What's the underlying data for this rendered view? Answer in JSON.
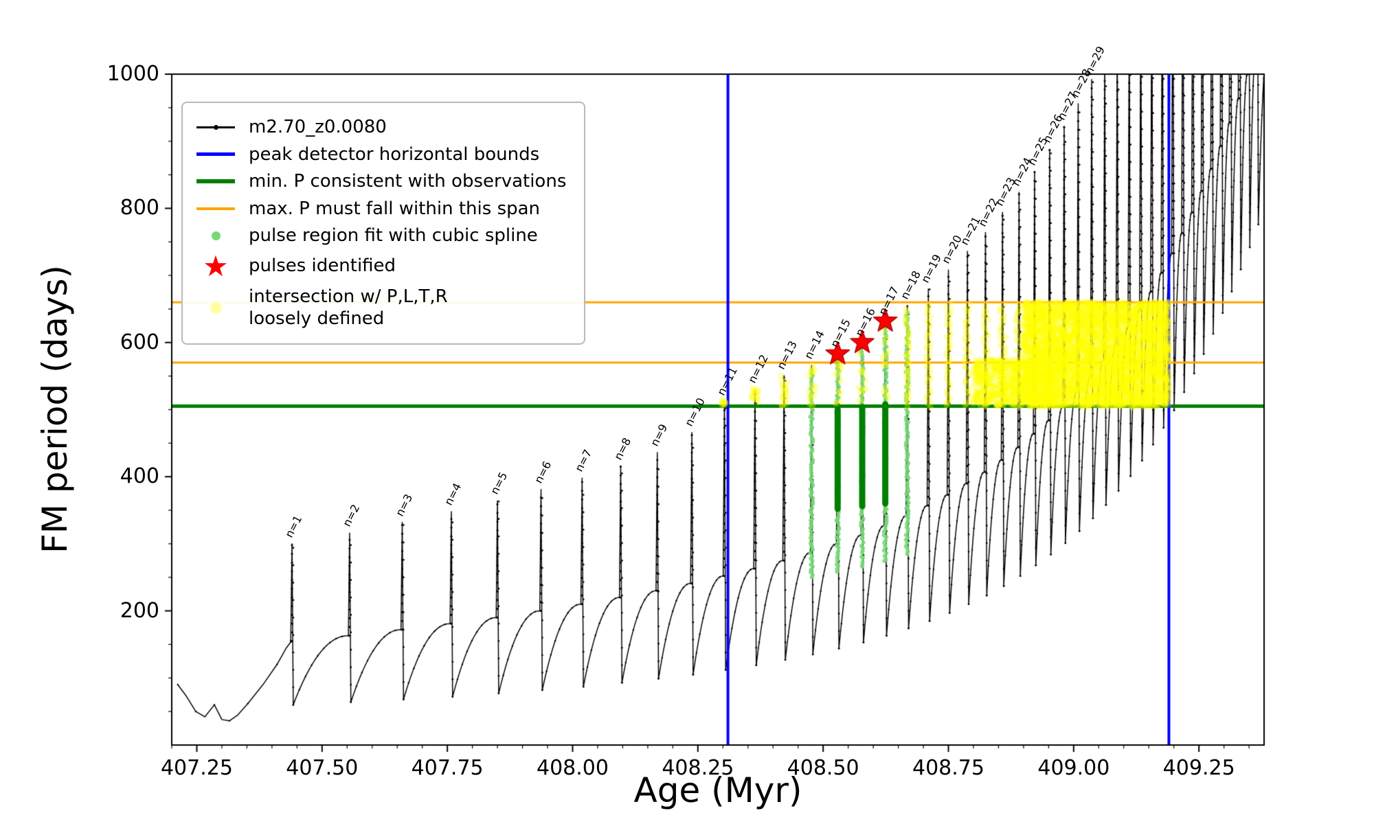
{
  "figure": {
    "background": "#ffffff"
  },
  "legend": {
    "entries": [
      {
        "label": "m2.70_z0.0080",
        "marker": "line-with-dot",
        "color": "#000000"
      },
      {
        "label": "peak detector horizontal bounds",
        "marker": "line",
        "color": "#0000ff"
      },
      {
        "label": "min. P consistent with observations",
        "marker": "line",
        "color": "#008000"
      },
      {
        "label": "max. P must fall within this span",
        "marker": "line",
        "color": "#ffa500"
      },
      {
        "label": "pulse region fit with cubic spline",
        "marker": "dot",
        "color": "#77d877"
      },
      {
        "label": "pulses identified",
        "marker": "star",
        "color": "#ff0000"
      },
      {
        "label": "intersection w/ P,L,T,R\nloosely defined",
        "marker": "dot",
        "color": "#ffffa0"
      }
    ]
  },
  "chart_data": {
    "type": "line",
    "series_label": "m2.70_z0.0080",
    "title": "",
    "xlabel": "Age (Myr)",
    "ylabel": "FM period (days)",
    "xlim": [
      407.2,
      409.38
    ],
    "ylim": [
      0,
      1000
    ],
    "xticks": [
      407.25,
      407.5,
      407.75,
      408.0,
      408.25,
      408.5,
      408.75,
      409.0,
      409.25
    ],
    "xtick_labels": [
      "407.25",
      "407.50",
      "407.75",
      "408.00",
      "408.25",
      "408.50",
      "408.75",
      "409.00",
      "409.25"
    ],
    "yticks": [
      200,
      400,
      600,
      800,
      1000
    ],
    "ytick_labels": [
      "200",
      "400",
      "600",
      "800",
      "1000"
    ],
    "x_minor_step": 0.05,
    "y_minor_step": 50,
    "line_color": "#000000",
    "pre_curve": [
      [
        407.212,
        90
      ],
      [
        407.228,
        74
      ],
      [
        407.248,
        50
      ],
      [
        407.266,
        42
      ],
      [
        407.285,
        60
      ],
      [
        407.3,
        38
      ],
      [
        407.315,
        36
      ],
      [
        407.332,
        45
      ],
      [
        407.352,
        62
      ],
      [
        407.382,
        90
      ],
      [
        407.41,
        120
      ],
      [
        407.428,
        144
      ],
      [
        407.438,
        154
      ]
    ],
    "pulses": [
      {
        "n": 1,
        "age": 407.44,
        "peak": 300,
        "crest": 155,
        "trough": 60
      },
      {
        "n": 2,
        "age": 407.555,
        "peak": 316,
        "crest": 163,
        "trough": 64
      },
      {
        "n": 3,
        "age": 407.66,
        "peak": 332,
        "crest": 172,
        "trough": 68
      },
      {
        "n": 4,
        "age": 407.758,
        "peak": 348,
        "crest": 181,
        "trough": 72
      },
      {
        "n": 5,
        "age": 407.85,
        "peak": 364,
        "crest": 190,
        "trough": 77
      },
      {
        "n": 6,
        "age": 407.937,
        "peak": 381,
        "crest": 200,
        "trough": 82
      },
      {
        "n": 7,
        "age": 408.019,
        "peak": 398,
        "crest": 210,
        "trough": 87
      },
      {
        "n": 8,
        "age": 408.096,
        "peak": 416,
        "crest": 220,
        "trough": 93
      },
      {
        "n": 9,
        "age": 408.169,
        "peak": 436,
        "crest": 230,
        "trough": 99
      },
      {
        "n": 10,
        "age": 408.238,
        "peak": 466,
        "crest": 241,
        "trough": 105
      },
      {
        "n": 11,
        "age": 408.303,
        "peak": 512,
        "crest": 252,
        "trough": 112
      },
      {
        "n": 12,
        "age": 408.364,
        "peak": 530,
        "crest": 263,
        "trough": 119
      },
      {
        "n": 13,
        "age": 408.422,
        "peak": 551,
        "crest": 275,
        "trough": 127
      },
      {
        "n": 14,
        "age": 408.477,
        "peak": 566,
        "crest": 287,
        "trough": 135
      },
      {
        "n": 15,
        "age": 408.529,
        "peak": 583,
        "crest": 300,
        "trough": 144
      },
      {
        "n": 16,
        "age": 408.578,
        "peak": 600,
        "crest": 313,
        "trough": 153
      },
      {
        "n": 17,
        "age": 408.624,
        "peak": 632,
        "crest": 327,
        "trough": 163
      },
      {
        "n": 18,
        "age": 408.668,
        "peak": 655,
        "crest": 342,
        "trough": 174
      },
      {
        "n": 19,
        "age": 408.71,
        "peak": 680,
        "crest": 357,
        "trough": 185
      },
      {
        "n": 20,
        "age": 408.75,
        "peak": 708,
        "crest": 373,
        "trough": 197
      },
      {
        "n": 21,
        "age": 408.788,
        "peak": 736,
        "crest": 390,
        "trough": 210
      },
      {
        "n": 22,
        "age": 408.824,
        "peak": 764,
        "crest": 407,
        "trough": 223
      },
      {
        "n": 23,
        "age": 408.858,
        "peak": 794,
        "crest": 425,
        "trough": 237
      },
      {
        "n": 24,
        "age": 408.891,
        "peak": 824,
        "crest": 444,
        "trough": 252
      },
      {
        "n": 25,
        "age": 408.922,
        "peak": 855,
        "crest": 464,
        "trough": 268
      },
      {
        "n": 26,
        "age": 408.952,
        "peak": 888,
        "crest": 484,
        "trough": 284
      },
      {
        "n": 27,
        "age": 408.981,
        "peak": 922,
        "crest": 505,
        "trough": 301
      },
      {
        "n": 28,
        "age": 409.009,
        "peak": 956,
        "crest": 527,
        "trough": 319
      },
      {
        "n": 29,
        "age": 409.036,
        "peak": 992,
        "crest": 550,
        "trough": 338
      }
    ],
    "unlabeled_pulses": [
      [
        409.062,
        1030,
        574,
        358
      ],
      [
        409.087,
        1065,
        598,
        379
      ],
      [
        409.111,
        1100,
        623,
        401
      ],
      [
        409.134,
        1135,
        649,
        424
      ],
      [
        409.156,
        1170,
        676,
        448
      ],
      [
        409.177,
        1205,
        704,
        473
      ],
      [
        409.198,
        1240,
        733,
        499
      ],
      [
        409.218,
        1275,
        763,
        526
      ],
      [
        409.238,
        1310,
        794,
        554
      ],
      [
        409.257,
        1345,
        826,
        583
      ],
      [
        409.276,
        1380,
        859,
        613
      ],
      [
        409.295,
        1415,
        893,
        644
      ],
      [
        409.313,
        1450,
        928,
        676
      ],
      [
        409.331,
        1485,
        964,
        709
      ],
      [
        409.349,
        1520,
        1000,
        742
      ],
      [
        409.366,
        1555,
        1036,
        776
      ]
    ],
    "peak_bounds": {
      "label": "peak detector horizontal bounds",
      "color": "#0000ff",
      "ages": [
        408.31,
        409.19
      ]
    },
    "min_P": {
      "label": "min. P consistent with observations",
      "color": "#008000",
      "value": 505
    },
    "max_P_span": {
      "label": "max. P must fall within this span",
      "color": "#ffa500",
      "values": [
        570,
        660
      ]
    },
    "pulse_region": {
      "label": "pulse region fit with cubic spline",
      "color": "#77d877",
      "columns": [
        [
          408.477,
          250,
          560
        ],
        [
          408.529,
          258,
          575
        ],
        [
          408.578,
          266,
          592
        ],
        [
          408.624,
          274,
          622
        ],
        [
          408.668,
          285,
          648
        ]
      ]
    },
    "spline_bars": {
      "color": "#008000",
      "columns": [
        [
          408.529,
          352,
          500
        ],
        [
          408.578,
          356,
          504
        ],
        [
          408.624,
          360,
          508
        ]
      ]
    },
    "pulses_identified": {
      "label": "pulses identified",
      "color": "#ff0000",
      "points": [
        [
          408.529,
          583
        ],
        [
          408.578,
          600
        ],
        [
          408.624,
          632
        ]
      ]
    },
    "intersection": {
      "label": "intersection w/ P,L,T,R\nloosely defined",
      "color": "#ffff00",
      "alpha": 0.3,
      "clusters": [
        [
          408.303,
          505,
          514,
          8
        ],
        [
          408.364,
          505,
          531,
          14
        ],
        [
          408.422,
          505,
          552,
          18
        ],
        [
          408.477,
          505,
          566,
          15
        ],
        [
          408.529,
          505,
          583,
          12
        ],
        [
          408.578,
          505,
          600,
          12
        ],
        [
          408.624,
          505,
          631,
          12
        ]
      ],
      "columns": [
        [
          408.668,
          505,
          650
        ],
        [
          408.71,
          505,
          660
        ],
        [
          408.75,
          505,
          660
        ],
        [
          408.788,
          505,
          660
        ],
        [
          408.824,
          505,
          660
        ],
        [
          408.858,
          505,
          660
        ],
        [
          408.891,
          505,
          660
        ],
        [
          408.922,
          505,
          660
        ],
        [
          408.952,
          505,
          660
        ],
        [
          408.981,
          505,
          660
        ],
        [
          409.009,
          505,
          660
        ],
        [
          409.036,
          505,
          660
        ],
        [
          409.062,
          505,
          660
        ],
        [
          409.087,
          505,
          660
        ],
        [
          409.111,
          505,
          660
        ],
        [
          409.134,
          505,
          660
        ],
        [
          409.156,
          505,
          660
        ],
        [
          409.177,
          505,
          660
        ]
      ],
      "blobs": [
        [
          408.8,
          408.96,
          505,
          575,
          600
        ],
        [
          408.9,
          409.19,
          505,
          660,
          3200
        ]
      ]
    },
    "seed": 42
  }
}
